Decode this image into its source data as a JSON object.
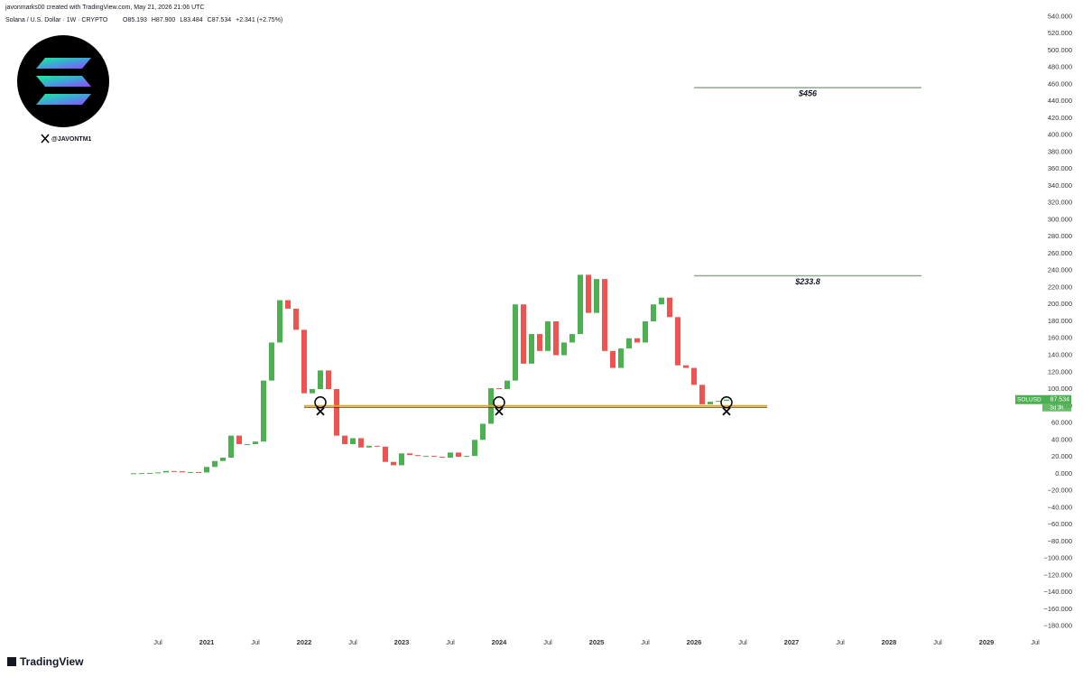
{
  "header": {
    "credit": "javonmarks00 created with TradingView.com, May 21, 2026 21:06 UTC",
    "symbol": "Solana / U.S. Dollar · 1W · CRYPTO",
    "ohlc": [
      "O85.193",
      "H87.900",
      "L83.484",
      "C87.534",
      "+2.341 (+2.75%)"
    ]
  },
  "handle": "@JAVONTM1",
  "brand": "TradingView",
  "chart_data": {
    "type": "candlestick",
    "x": [
      "2020-04",
      "2020-05",
      "2020-06",
      "2020-07",
      "2020-08",
      "2020-09",
      "2020-10",
      "2020-11",
      "2020-12",
      "2021-01",
      "2021-02",
      "2021-03",
      "2021-04",
      "2021-05",
      "2021-06",
      "2021-07",
      "2021-08",
      "2021-09",
      "2021-10",
      "2021-11",
      "2021-12",
      "2022-01",
      "2022-02",
      "2022-03",
      "2022-04",
      "2022-05",
      "2022-06",
      "2022-07",
      "2022-08",
      "2022-09",
      "2022-10",
      "2022-11",
      "2022-12",
      "2023-01",
      "2023-02",
      "2023-03",
      "2023-04",
      "2023-05",
      "2023-06",
      "2023-07",
      "2023-08",
      "2023-09",
      "2023-10",
      "2023-11",
      "2023-12",
      "2024-01",
      "2024-02",
      "2024-03",
      "2024-04",
      "2024-05",
      "2024-06",
      "2024-07",
      "2024-08",
      "2024-09",
      "2024-10",
      "2024-11",
      "2024-12",
      "2025-01",
      "2025-02",
      "2025-03",
      "2025-04",
      "2025-05",
      "2025-06",
      "2025-07",
      "2025-08",
      "2025-09",
      "2025-10",
      "2025-11",
      "2025-12",
      "2026-01",
      "2026-02",
      "2026-03",
      "2026-04",
      "2026-05"
    ],
    "close": [
      0.6,
      0.7,
      0.9,
      1.5,
      3.2,
      2.9,
      1.6,
      2.0,
      1.5,
      8,
      15,
      19,
      45,
      35,
      35,
      38,
      110,
      155,
      205,
      195,
      170,
      95,
      100,
      122,
      100,
      45,
      35,
      42,
      31,
      33,
      32,
      14,
      10,
      24,
      22,
      21,
      21,
      20,
      19,
      25,
      20,
      21,
      40,
      59,
      101,
      100,
      110,
      200,
      130,
      165,
      145,
      180,
      140,
      155,
      165,
      235,
      190,
      230,
      145,
      125,
      148,
      160,
      155,
      180,
      200,
      208,
      185,
      128,
      125,
      105,
      82,
      85,
      86,
      87.534
    ],
    "up_color": "#4caf50",
    "down_color": "#ef5350",
    "xlim": [
      "2018-12",
      "2029-10"
    ],
    "xticks": [
      {
        "value": "2020-07",
        "label": "Jul"
      },
      {
        "value": "2021-01",
        "label": "2021"
      },
      {
        "value": "2021-07",
        "label": "Jul"
      },
      {
        "value": "2022-01",
        "label": "2022"
      },
      {
        "value": "2022-07",
        "label": "Jul"
      },
      {
        "value": "2023-01",
        "label": "2023"
      },
      {
        "value": "2023-07",
        "label": "Jul"
      },
      {
        "value": "2024-01",
        "label": "2024"
      },
      {
        "value": "2024-07",
        "label": "Jul"
      },
      {
        "value": "2025-01",
        "label": "2025"
      },
      {
        "value": "2025-07",
        "label": "Jul"
      },
      {
        "value": "2026-01",
        "label": "2026"
      },
      {
        "value": "2026-07",
        "label": "Jul"
      },
      {
        "value": "2027-01",
        "label": "2027"
      },
      {
        "value": "2027-07",
        "label": "Jul"
      },
      {
        "value": "2028-01",
        "label": "2028"
      },
      {
        "value": "2028-07",
        "label": "Jul"
      },
      {
        "value": "2029-01",
        "label": "2029"
      },
      {
        "value": "2029-07",
        "label": "Jul"
      }
    ],
    "ylim": [
      -190,
      550
    ],
    "yticks": [
      {
        "value": -180,
        "label": "−180.000"
      },
      {
        "value": -160,
        "label": "−160.000"
      },
      {
        "value": -140,
        "label": "−140.000"
      },
      {
        "value": -120,
        "label": "−120.000"
      },
      {
        "value": -100,
        "label": "−100.000"
      },
      {
        "value": -80,
        "label": "−80.000"
      },
      {
        "value": -60,
        "label": "−60.000"
      },
      {
        "value": -40,
        "label": "−40.000"
      },
      {
        "value": -20,
        "label": "−20.000"
      },
      {
        "value": 0,
        "label": "0.000"
      },
      {
        "value": 20,
        "label": "20.000"
      },
      {
        "value": 40,
        "label": "40.000"
      },
      {
        "value": 60,
        "label": "60.000"
      },
      {
        "value": 80,
        "label": "80.000"
      },
      {
        "value": 100,
        "label": "100.000"
      },
      {
        "value": 120,
        "label": "120.000"
      },
      {
        "value": 140,
        "label": "140.000"
      },
      {
        "value": 160,
        "label": "160.000"
      },
      {
        "value": 180,
        "label": "180.000"
      },
      {
        "value": 200,
        "label": "200.000"
      },
      {
        "value": 220,
        "label": "220.000"
      },
      {
        "value": 240,
        "label": "240.000"
      },
      {
        "value": 260,
        "label": "260.000"
      },
      {
        "value": 280,
        "label": "280.000"
      },
      {
        "value": 300,
        "label": "300.000"
      },
      {
        "value": 320,
        "label": "320.000"
      },
      {
        "value": 340,
        "label": "340.000"
      },
      {
        "value": 360,
        "label": "360.000"
      },
      {
        "value": 380,
        "label": "380.000"
      },
      {
        "value": 400,
        "label": "400.000"
      },
      {
        "value": 420,
        "label": "420.000"
      },
      {
        "value": 440,
        "label": "440.000"
      },
      {
        "value": 460,
        "label": "460.000"
      },
      {
        "value": 480,
        "label": "480.000"
      },
      {
        "value": 500,
        "label": "500.000"
      },
      {
        "value": 520,
        "label": "520.000"
      },
      {
        "value": 540,
        "label": "540.000"
      }
    ],
    "levels": [
      {
        "value": 456,
        "label": "$456",
        "start": "2026-01",
        "end": "2028-05",
        "color": "#8fa88f"
      },
      {
        "value": 233.8,
        "label": "$233.8",
        "start": "2026-01",
        "end": "2028-05",
        "color": "#8fa88f"
      }
    ],
    "support": {
      "value": 80,
      "start": "2022-01",
      "end": "2026-10",
      "color": "#e8a317",
      "touches": [
        "2022-03",
        "2024-01",
        "2026-05"
      ]
    },
    "last_price": {
      "symbol": "SOLUSD",
      "countdown": "3d 3h",
      "color": "#4caf50"
    }
  }
}
